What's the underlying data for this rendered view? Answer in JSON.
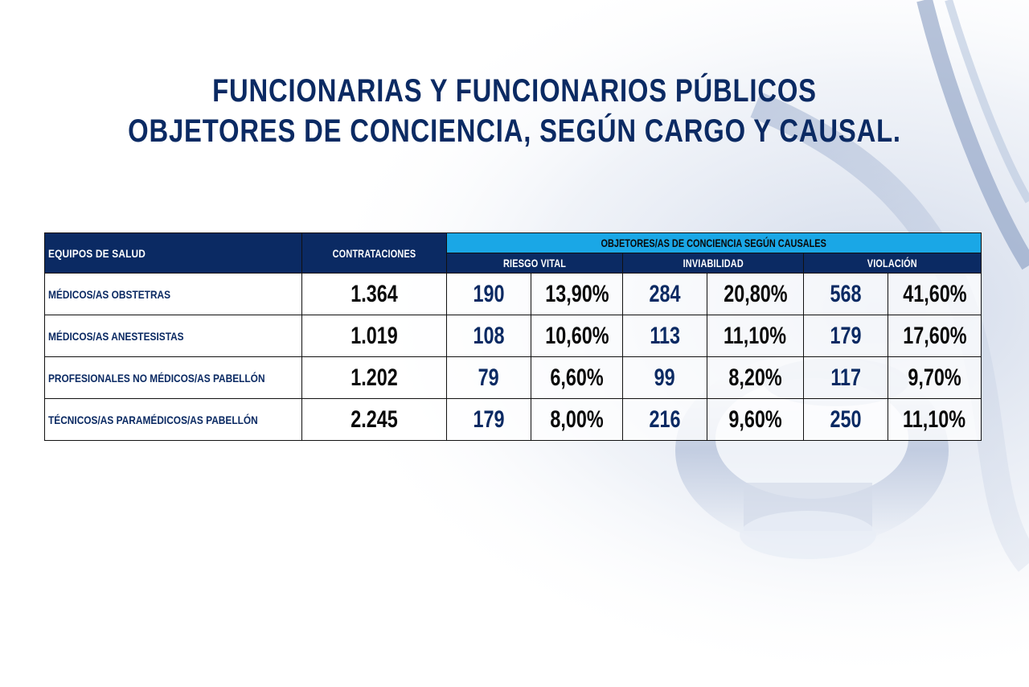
{
  "title": {
    "line1": "FUNCIONARIAS Y FUNCIONARIOS PÚBLICOS",
    "line2": "OBJETORES DE CONCIENCIA, SEGÚN CARGO Y CAUSAL."
  },
  "colors": {
    "navy": "#0b2a63",
    "cyan": "#1aa7e6",
    "black": "#0a0a0a"
  },
  "chart_data": {
    "type": "table",
    "header": {
      "equipos": "EQUIPOS DE SALUD",
      "contrataciones": "CONTRATACIONES",
      "group": "OBJETORES/AS DE CONCIENCIA SEGÚN CAUSALES",
      "causales": [
        "RIESGO VITAL",
        "INVIABILIDAD",
        "VIOLACIÓN"
      ]
    },
    "rows": [
      {
        "label": "MÉDICOS/AS OBSTETRAS",
        "contrataciones": "1.364",
        "riesgo_vital": {
          "n": "190",
          "pct": "13,90%"
        },
        "inviabilidad": {
          "n": "284",
          "pct": "20,80%"
        },
        "violacion": {
          "n": "568",
          "pct": "41,60%"
        }
      },
      {
        "label": "MÉDICOS/AS ANESTESISTAS",
        "contrataciones": "1.019",
        "riesgo_vital": {
          "n": "108",
          "pct": "10,60%"
        },
        "inviabilidad": {
          "n": "113",
          "pct": "11,10%"
        },
        "violacion": {
          "n": "179",
          "pct": "17,60%"
        }
      },
      {
        "label": "PROFESIONALES NO MÉDICOS/AS PABELLÓN",
        "contrataciones": "1.202",
        "riesgo_vital": {
          "n": "79",
          "pct": "6,60%"
        },
        "inviabilidad": {
          "n": "99",
          "pct": "8,20%"
        },
        "violacion": {
          "n": "117",
          "pct": "9,70%"
        }
      },
      {
        "label": "TÉCNICOS/AS PARAMÉDICOS/AS PABELLÓN",
        "contrataciones": "2.245",
        "riesgo_vital": {
          "n": "179",
          "pct": "8,00%"
        },
        "inviabilidad": {
          "n": "216",
          "pct": "9,60%"
        },
        "violacion": {
          "n": "250",
          "pct": "11,10%"
        }
      }
    ]
  }
}
